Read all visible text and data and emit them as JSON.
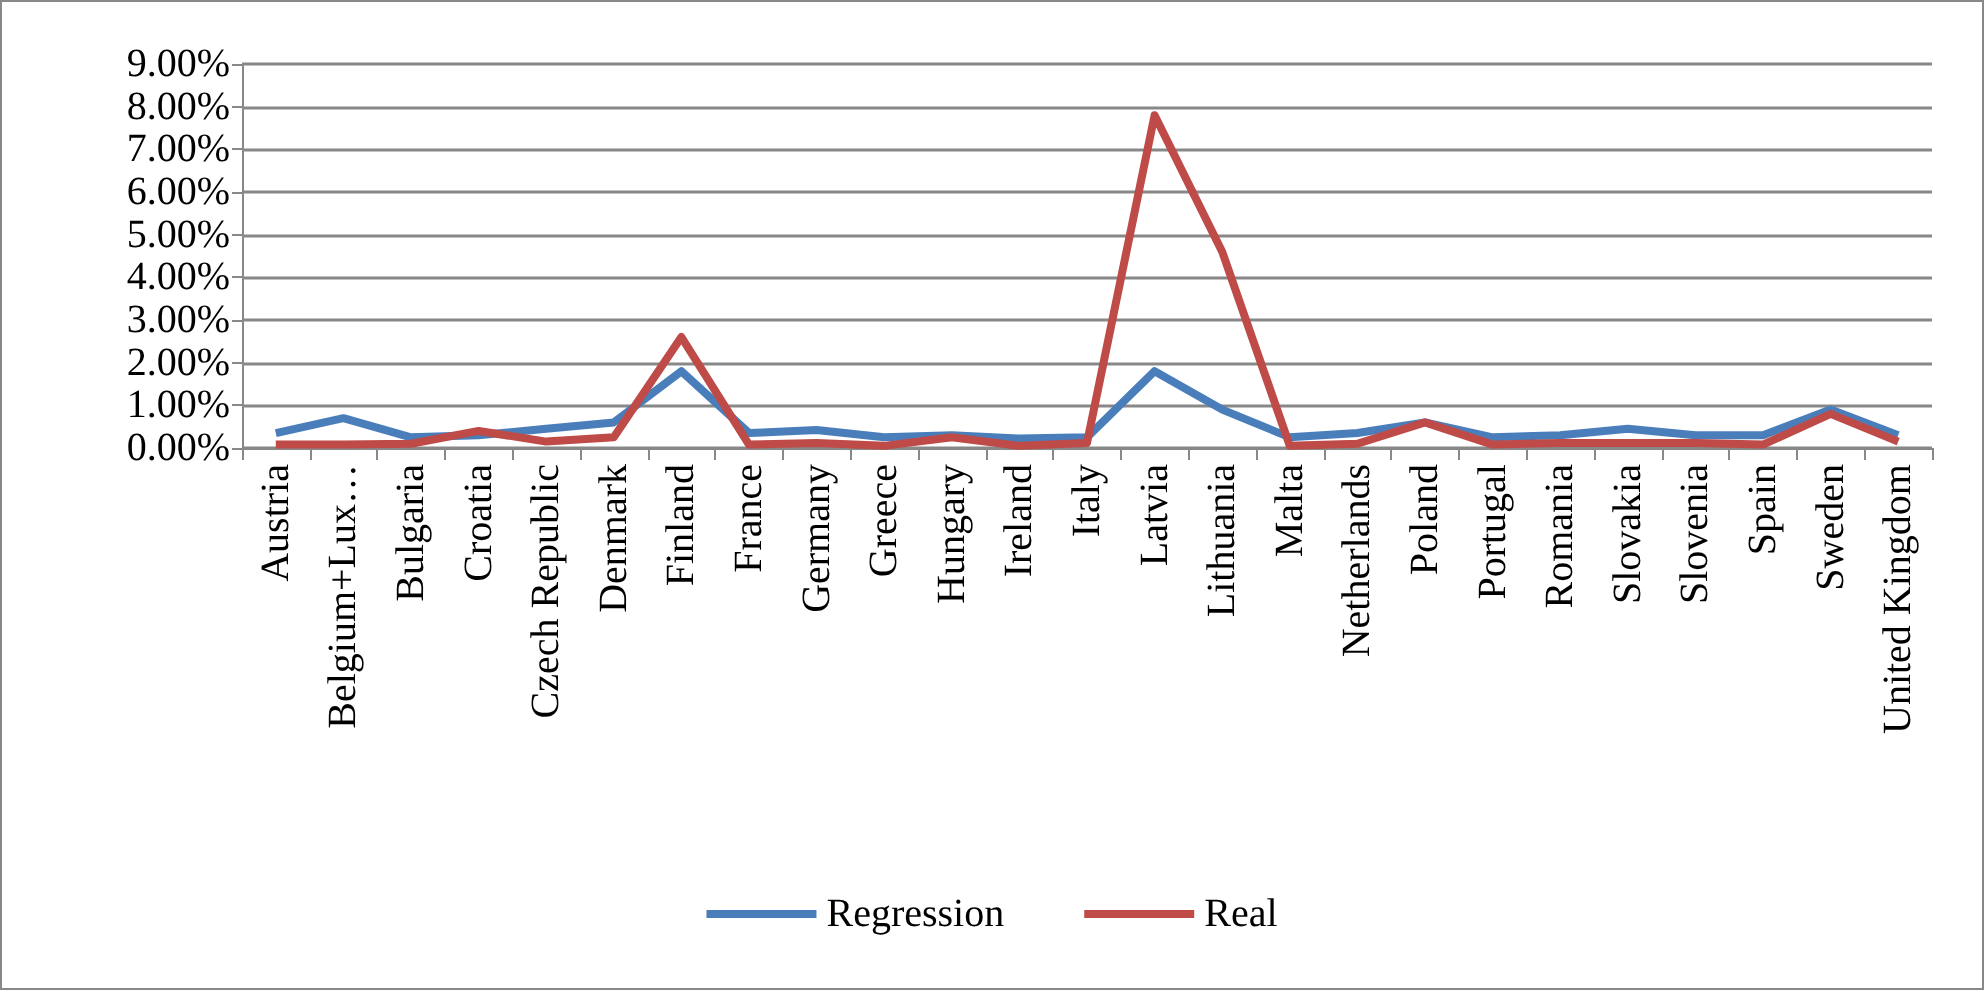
{
  "chart_data": {
    "type": "line",
    "categories": [
      "Austria",
      "Belgium+Lux…",
      "Bulgaria",
      "Croatia",
      "Czech Republic",
      "Denmark",
      "Finland",
      "France",
      "Germany",
      "Greece",
      "Hungary",
      "Ireland",
      "Italy",
      "Latvia",
      "Lithuania",
      "Malta",
      "Netherlands",
      "Poland",
      "Portugal",
      "Romania",
      "Slovakia",
      "Slovenia",
      "Spain",
      "Sweden",
      "United Kingdom"
    ],
    "series": [
      {
        "name": "Regression",
        "color": "#4a7ebb",
        "values": [
          0.35,
          0.7,
          0.25,
          0.3,
          0.45,
          0.6,
          1.8,
          0.35,
          0.42,
          0.25,
          0.3,
          0.22,
          0.25,
          1.8,
          0.9,
          0.25,
          0.35,
          0.6,
          0.25,
          0.3,
          0.45,
          0.3,
          0.3,
          0.9,
          0.3
        ]
      },
      {
        "name": "Real",
        "color": "#be4b48",
        "values": [
          0.08,
          0.08,
          0.1,
          0.4,
          0.15,
          0.25,
          2.6,
          0.08,
          0.12,
          0.05,
          0.25,
          0.05,
          0.12,
          7.8,
          4.6,
          0.05,
          0.1,
          0.6,
          0.08,
          0.12,
          0.12,
          0.12,
          0.08,
          0.8,
          0.15
        ]
      }
    ],
    "ylim": [
      0,
      9
    ],
    "yticks": [
      {
        "value": 0,
        "label": "0.00%"
      },
      {
        "value": 1,
        "label": "1.00%"
      },
      {
        "value": 2,
        "label": "2.00%"
      },
      {
        "value": 3,
        "label": "3.00%"
      },
      {
        "value": 4,
        "label": "4.00%"
      },
      {
        "value": 5,
        "label": "5.00%"
      },
      {
        "value": 6,
        "label": "6.00%"
      },
      {
        "value": 7,
        "label": "7.00%"
      },
      {
        "value": 8,
        "label": "8.00%"
      },
      {
        "value": 9,
        "label": "9.00%"
      }
    ],
    "grid": "y",
    "legend": "bottom",
    "marker": "none",
    "line_style": "solid"
  }
}
